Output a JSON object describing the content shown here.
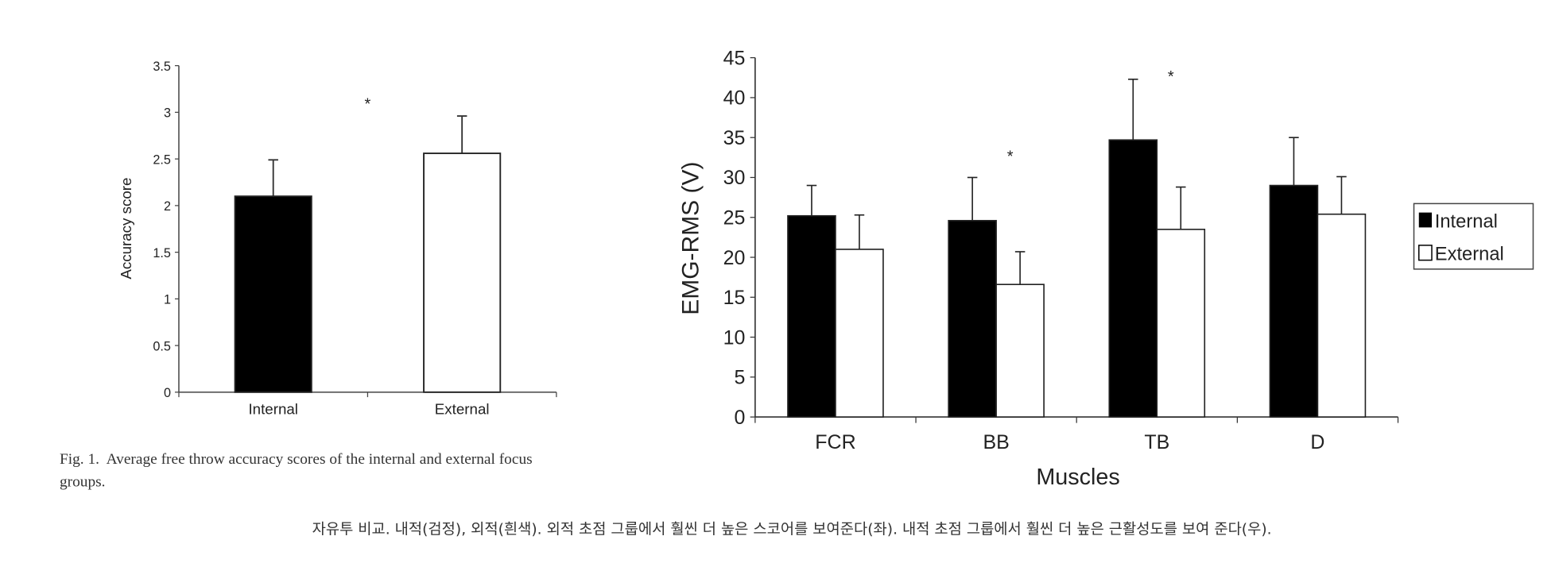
{
  "chart_data": [
    {
      "type": "bar",
      "title": "",
      "xlabel": "",
      "ylabel": "Accuracy score",
      "ylim": [
        0,
        3.5
      ],
      "yticks": [
        "0",
        "0.5",
        "1",
        "1.5",
        "2",
        "2.5",
        "3",
        "3.5"
      ],
      "categories": [
        "Internal",
        "External"
      ],
      "values": [
        2.1,
        2.56
      ],
      "errors": [
        0.39,
        0.4
      ],
      "fills": [
        "#000000",
        "#ffffff"
      ],
      "significance_marker": "*",
      "caption": "Fig. 1.  Average free throw accuracy scores of the internal and external focus",
      "caption_line2": "groups."
    },
    {
      "type": "bar",
      "title": "",
      "xlabel": "Muscles",
      "ylabel": "EMG-RMS (V)",
      "ylim": [
        0,
        45
      ],
      "yticks": [
        "0",
        "5",
        "10",
        "15",
        "20",
        "25",
        "30",
        "35",
        "40",
        "45"
      ],
      "categories": [
        "FCR",
        "BB",
        "TB",
        "D"
      ],
      "series": [
        {
          "name": "Internal",
          "color": "#000000",
          "values": [
            25.2,
            24.6,
            34.7,
            29.0
          ],
          "errors": [
            3.8,
            5.4,
            7.6,
            6.0
          ]
        },
        {
          "name": "External",
          "color": "#ffffff",
          "values": [
            21.0,
            16.6,
            23.5,
            25.4
          ],
          "errors": [
            4.3,
            4.1,
            5.3,
            4.7
          ]
        }
      ],
      "significance": [
        {
          "category": "BB",
          "marker": "*",
          "y": 33
        },
        {
          "category": "TB",
          "marker": "*",
          "y": 43
        }
      ],
      "legend": "right"
    }
  ],
  "footer_caption": "자유투 비교. 내적(검정), 외적(흰색). 외적 초점 그룹에서 훨씬 더 높은 스코어를 보여준다(좌). 내적 초점 그룹에서 훨씬 더 높은 근활성도를 보여 준다(우)."
}
